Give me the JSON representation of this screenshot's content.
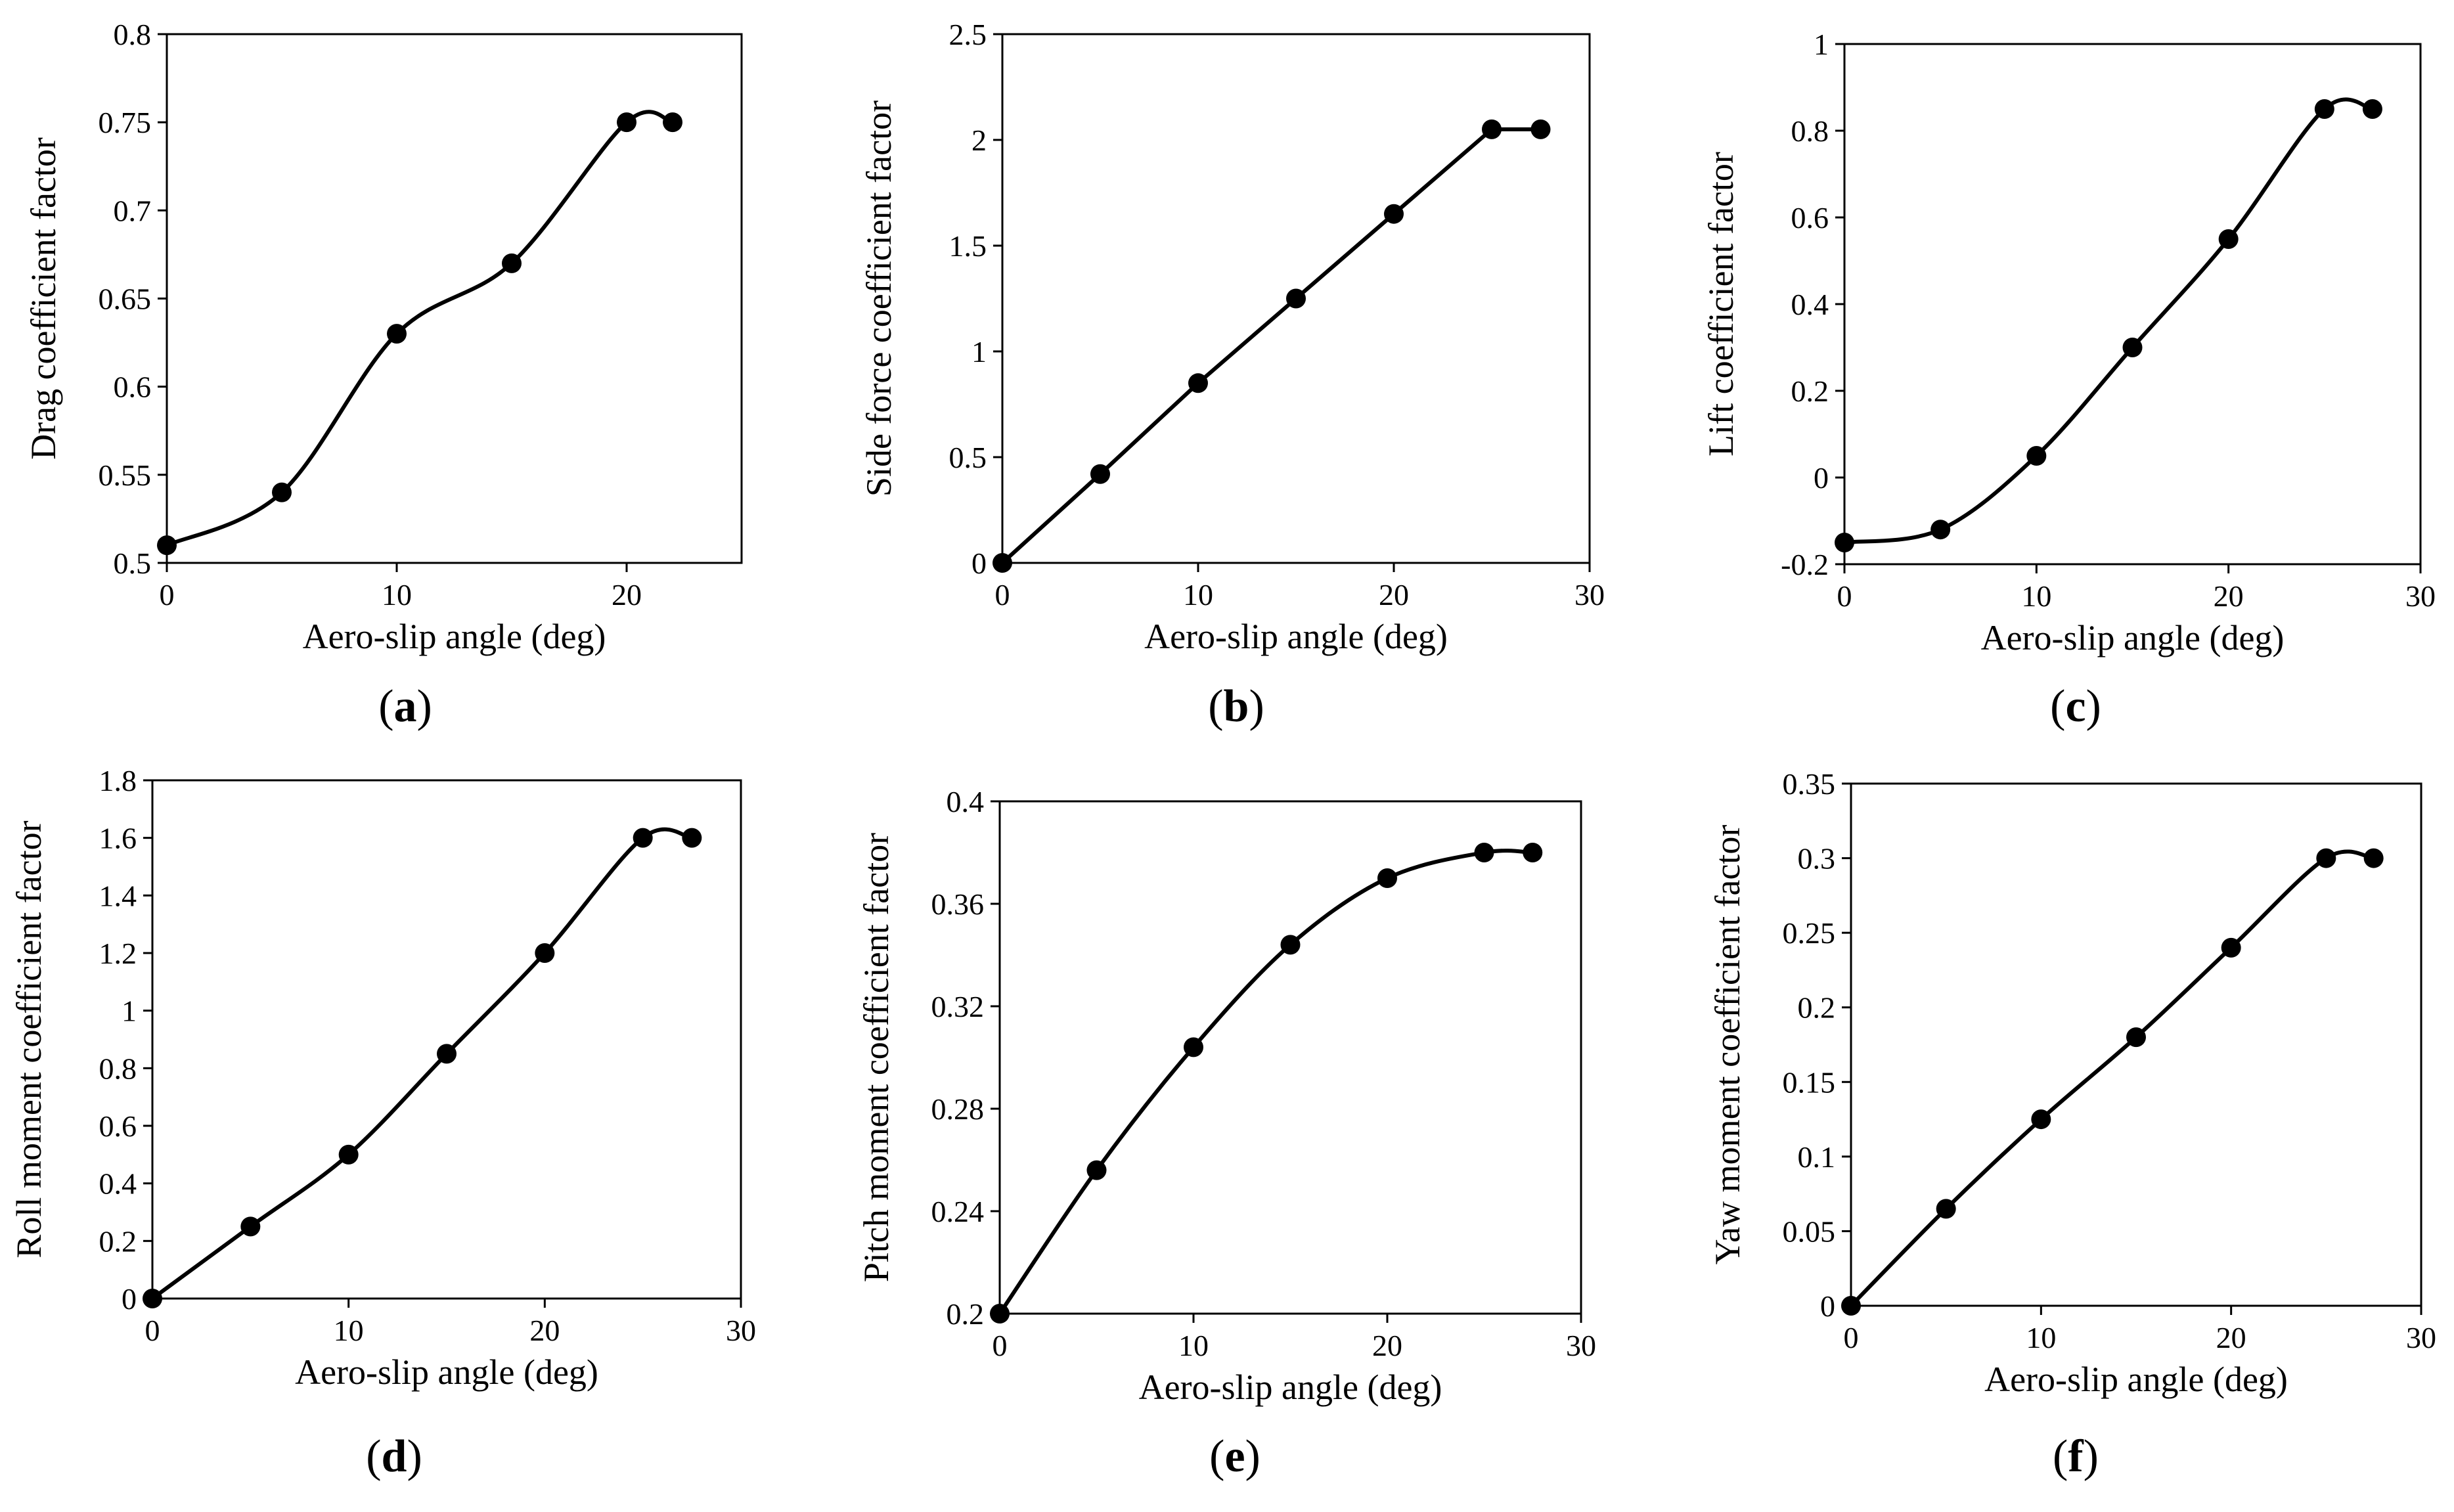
{
  "figure": {
    "panel_labels": [
      {
        "open": "(",
        "letter": "a",
        "close": ")"
      },
      {
        "open": "(",
        "letter": "b",
        "close": ")"
      },
      {
        "open": "(",
        "letter": "c",
        "close": ")"
      },
      {
        "open": "(",
        "letter": "d",
        "close": ")"
      },
      {
        "open": "(",
        "letter": "e",
        "close": ")"
      },
      {
        "open": "(",
        "letter": "f",
        "close": ")"
      }
    ]
  },
  "chart_data": [
    {
      "type": "scatter",
      "title": "",
      "xlabel": "Aero-slip angle (deg)",
      "ylabel": "Drag coefficient factor",
      "xlim": [
        0,
        25
      ],
      "ylim": [
        0.5,
        0.8
      ],
      "xticks": [
        "0",
        "10",
        "20"
      ],
      "yticks": [
        "0.5",
        "0.55",
        "0.6",
        "0.65",
        "0.7",
        "0.75",
        "0.8"
      ],
      "x": [
        0,
        5,
        10,
        15,
        20,
        22
      ],
      "y": [
        0.51,
        0.54,
        0.63,
        0.67,
        0.75,
        0.75
      ],
      "trendline": "smooth"
    },
    {
      "type": "scatter",
      "title": "",
      "xlabel": "Aero-slip angle (deg)",
      "ylabel": "Side force coefficient factor",
      "xlim": [
        0,
        30
      ],
      "ylim": [
        0,
        2.5
      ],
      "xticks": [
        "0",
        "10",
        "20",
        "30"
      ],
      "yticks": [
        "0",
        "0.5",
        "1",
        "1.5",
        "2",
        "2.5"
      ],
      "x": [
        0,
        5,
        10,
        15,
        20,
        25,
        27.5
      ],
      "y": [
        0,
        0.42,
        0.85,
        1.25,
        1.65,
        2.05,
        2.05
      ],
      "trendline": "linear"
    },
    {
      "type": "scatter",
      "title": "",
      "xlabel": "Aero-slip angle (deg)",
      "ylabel": "Lift  coefficient factor",
      "xlim": [
        0,
        30
      ],
      "ylim": [
        -0.2,
        1
      ],
      "xticks": [
        "0",
        "10",
        "20",
        "30"
      ],
      "yticks": [
        "-0.2",
        "0",
        "0.2",
        "0.4",
        "0.6",
        "0.8",
        "1"
      ],
      "x": [
        0,
        5,
        10,
        15,
        20,
        25,
        27.5
      ],
      "y": [
        -0.15,
        -0.12,
        0.05,
        0.3,
        0.55,
        0.85,
        0.85
      ],
      "trendline": "smooth"
    },
    {
      "type": "scatter",
      "title": "",
      "xlabel": "Aero-slip angle (deg)",
      "ylabel": "Roll moment coefficient factor",
      "xlim": [
        0,
        30
      ],
      "ylim": [
        0,
        1.8
      ],
      "xticks": [
        "0",
        "10",
        "20",
        "30"
      ],
      "yticks": [
        "0",
        "0.2",
        "0.4",
        "0.6",
        "0.8",
        "1",
        "1.2",
        "1.4",
        "1.6",
        "1.8"
      ],
      "x": [
        0,
        5,
        10,
        15,
        20,
        25,
        27.5
      ],
      "y": [
        0,
        0.25,
        0.5,
        0.85,
        1.2,
        1.6,
        1.6
      ],
      "trendline": "smooth"
    },
    {
      "type": "scatter",
      "title": "",
      "xlabel": "Aero-slip angle (deg)",
      "ylabel": "Pitch moment coefficient factor",
      "xlim": [
        0,
        30
      ],
      "ylim": [
        0.2,
        0.4
      ],
      "xticks": [
        "0",
        "10",
        "20",
        "30"
      ],
      "yticks": [
        "0.2",
        "0.24",
        "0.28",
        "0.32",
        "0.36",
        "0.4"
      ],
      "x": [
        0,
        5,
        10,
        15,
        20,
        25,
        27.5
      ],
      "y": [
        0.2,
        0.256,
        0.304,
        0.344,
        0.37,
        0.38,
        0.38
      ],
      "trendline": "smooth"
    },
    {
      "type": "scatter",
      "title": "",
      "xlabel": "Aero-slip angle (deg)",
      "ylabel": "Yaw moment coefficient factor",
      "xlim": [
        0,
        30
      ],
      "ylim": [
        0,
        0.35
      ],
      "xticks": [
        "0",
        "10",
        "20",
        "30"
      ],
      "yticks": [
        "0",
        "0.05",
        "0.1",
        "0.15",
        "0.2",
        "0.25",
        "0.3",
        "0.35"
      ],
      "x": [
        0,
        5,
        10,
        15,
        20,
        25,
        27.5
      ],
      "y": [
        0,
        0.065,
        0.125,
        0.18,
        0.24,
        0.3,
        0.3
      ],
      "trendline": "smooth"
    }
  ]
}
